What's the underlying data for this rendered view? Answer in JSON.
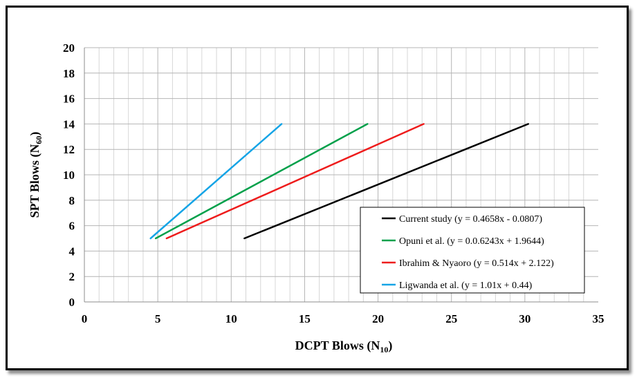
{
  "chart_data": {
    "type": "line",
    "xlabel": {
      "main": "DCPT Blows (N",
      "sub": "10",
      "end": ")"
    },
    "ylabel": {
      "main": "SPT Blows (N",
      "sub": "60",
      "end": ")"
    },
    "xlim": [
      0,
      35
    ],
    "ylim": [
      0,
      20
    ],
    "xticks": [
      0,
      5,
      10,
      15,
      20,
      25,
      30,
      35
    ],
    "yticks": [
      0,
      2,
      4,
      6,
      8,
      10,
      12,
      14,
      16,
      18,
      20
    ],
    "grid": true,
    "legend_position": "bottom-right",
    "series": [
      {
        "name": "Current study (y = 0.4658x - 0.0807)",
        "color": "#000000",
        "x": [
          10.9,
          30.23
        ],
        "y": [
          5,
          14
        ]
      },
      {
        "name": "Opuni et al. (y = 0.0.6243x + 1.9644)",
        "color": "#00a04a",
        "x": [
          4.86,
          19.28
        ],
        "y": [
          5,
          14
        ]
      },
      {
        "name": "Ibrahim & Nyaoro (y = 0.514x + 2.122)",
        "color": "#ee1c1c",
        "x": [
          5.6,
          23.11
        ],
        "y": [
          5,
          14
        ]
      },
      {
        "name": "Ligwanda et al. (y = 1.01x + 0.44)",
        "color": "#14a4e6",
        "x": [
          4.51,
          13.43
        ],
        "y": [
          5,
          14
        ]
      }
    ]
  }
}
